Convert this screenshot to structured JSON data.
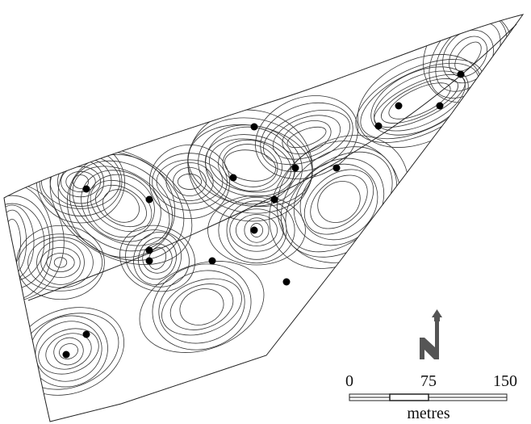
{
  "scale_bar": {
    "ticks": [
      0,
      75,
      150
    ],
    "unit": "metres"
  }
}
